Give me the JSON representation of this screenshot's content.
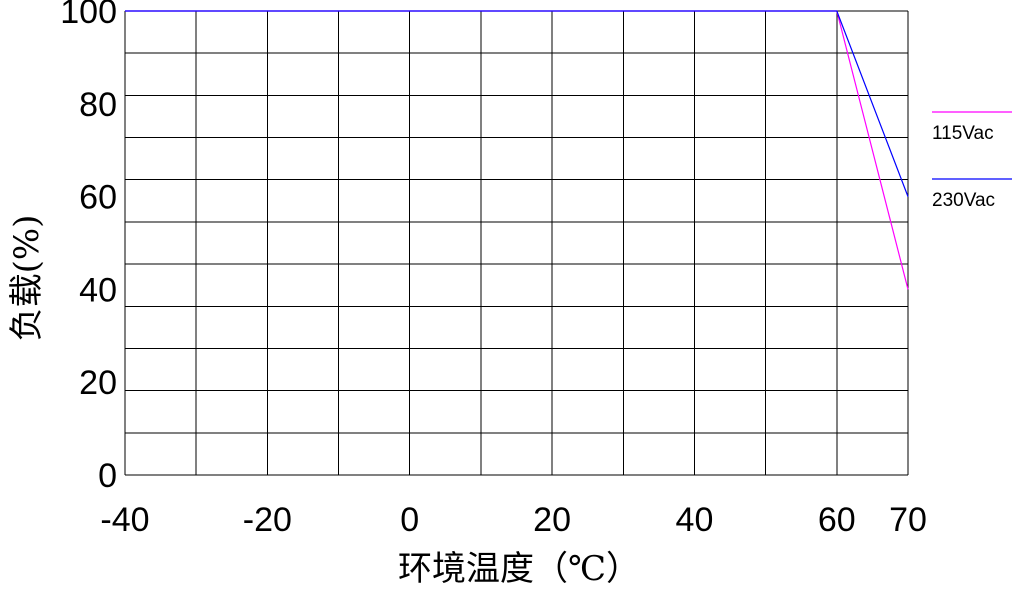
{
  "chart_data": {
    "type": "line",
    "xlabel": "环境温度（℃）",
    "ylabel": "负载(%)",
    "xlim": [
      -40,
      70
    ],
    "ylim": [
      0,
      100
    ],
    "x_ticks": [
      -40,
      -20,
      0,
      20,
      40,
      60,
      70
    ],
    "y_ticks": [
      0,
      20,
      40,
      60,
      80,
      100
    ],
    "grid": true,
    "legend_position": "right",
    "series": [
      {
        "name": "115Vac",
        "color": "#ff00ff",
        "x": [
          -40,
          60,
          70
        ],
        "y": [
          100,
          100,
          40
        ]
      },
      {
        "name": "230Vac",
        "color": "#0000ff",
        "x": [
          -40,
          60,
          70
        ],
        "y": [
          100,
          100,
          60
        ]
      }
    ]
  }
}
